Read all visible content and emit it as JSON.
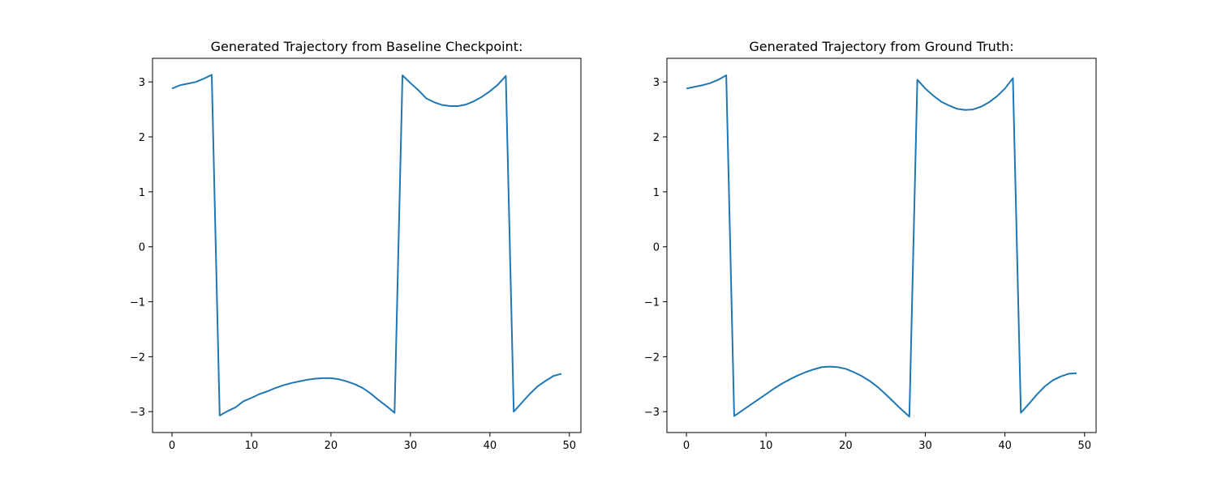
{
  "chart_data": [
    {
      "type": "line",
      "title": "Generated Trajectory from Baseline Checkpoint:",
      "xlabel": "",
      "ylabel": "",
      "xlim": [
        -2.45,
        51.45
      ],
      "ylim": [
        -3.38,
        3.43
      ],
      "xticks": [
        0,
        10,
        20,
        30,
        40,
        50
      ],
      "xtick_labels": [
        "0",
        "10",
        "20",
        "30",
        "40",
        "50"
      ],
      "yticks": [
        -3,
        -2,
        -1,
        0,
        1,
        2,
        3
      ],
      "ytick_labels": [
        "−3",
        "−2",
        "−1",
        "0",
        "1",
        "2",
        "3"
      ],
      "grid": false,
      "color": "#1f77b4",
      "series": [
        {
          "x": [
            0,
            1,
            2,
            3,
            4,
            5,
            6,
            7,
            8,
            9,
            10,
            11,
            12,
            13,
            14,
            15,
            16,
            17,
            18,
            19,
            20,
            21,
            22,
            23,
            24,
            25,
            26,
            27,
            28,
            29,
            30,
            31,
            32,
            33,
            34,
            35,
            36,
            37,
            38,
            39,
            40,
            41,
            42,
            43,
            44,
            45,
            46,
            47,
            48,
            49
          ],
          "values": [
            2.88,
            2.94,
            2.97,
            3.0,
            3.06,
            3.13,
            -3.07,
            -2.99,
            -2.92,
            -2.81,
            -2.75,
            -2.68,
            -2.63,
            -2.57,
            -2.52,
            -2.48,
            -2.45,
            -2.42,
            -2.4,
            -2.39,
            -2.39,
            -2.41,
            -2.45,
            -2.5,
            -2.57,
            -2.67,
            -2.79,
            -2.9,
            -3.02,
            3.12,
            2.98,
            2.85,
            2.7,
            2.63,
            2.58,
            2.56,
            2.56,
            2.59,
            2.65,
            2.73,
            2.83,
            2.95,
            3.11,
            -3.0,
            -2.84,
            -2.68,
            -2.54,
            -2.44,
            -2.35,
            -2.31
          ]
        }
      ]
    },
    {
      "type": "line",
      "title": "Generated Trajectory from Ground Truth:",
      "xlabel": "",
      "ylabel": "",
      "xlim": [
        -2.45,
        51.45
      ],
      "ylim": [
        -3.38,
        3.43
      ],
      "xticks": [
        0,
        10,
        20,
        30,
        40,
        50
      ],
      "xtick_labels": [
        "0",
        "10",
        "20",
        "30",
        "40",
        "50"
      ],
      "yticks": [
        -3,
        -2,
        -1,
        0,
        1,
        2,
        3
      ],
      "ytick_labels": [
        "−3",
        "−2",
        "−1",
        "0",
        "1",
        "2",
        "3"
      ],
      "grid": false,
      "color": "#1f77b4",
      "series": [
        {
          "x": [
            0,
            1,
            2,
            3,
            4,
            5,
            6,
            7,
            8,
            9,
            10,
            11,
            12,
            13,
            14,
            15,
            16,
            17,
            18,
            19,
            20,
            21,
            22,
            23,
            24,
            25,
            26,
            27,
            28,
            29,
            30,
            31,
            32,
            33,
            34,
            35,
            36,
            37,
            38,
            39,
            40,
            41,
            42,
            43,
            44,
            45,
            46,
            47,
            48,
            49
          ],
          "values": [
            2.88,
            2.91,
            2.94,
            2.98,
            3.04,
            3.12,
            -3.08,
            -2.98,
            -2.88,
            -2.78,
            -2.68,
            -2.58,
            -2.49,
            -2.41,
            -2.34,
            -2.28,
            -2.23,
            -2.19,
            -2.18,
            -2.19,
            -2.22,
            -2.28,
            -2.35,
            -2.44,
            -2.55,
            -2.68,
            -2.82,
            -2.96,
            -3.09,
            3.04,
            2.88,
            2.75,
            2.64,
            2.57,
            2.51,
            2.49,
            2.5,
            2.55,
            2.63,
            2.74,
            2.88,
            3.07,
            -3.02,
            -2.86,
            -2.69,
            -2.54,
            -2.43,
            -2.36,
            -2.31,
            -2.3
          ]
        }
      ]
    }
  ]
}
